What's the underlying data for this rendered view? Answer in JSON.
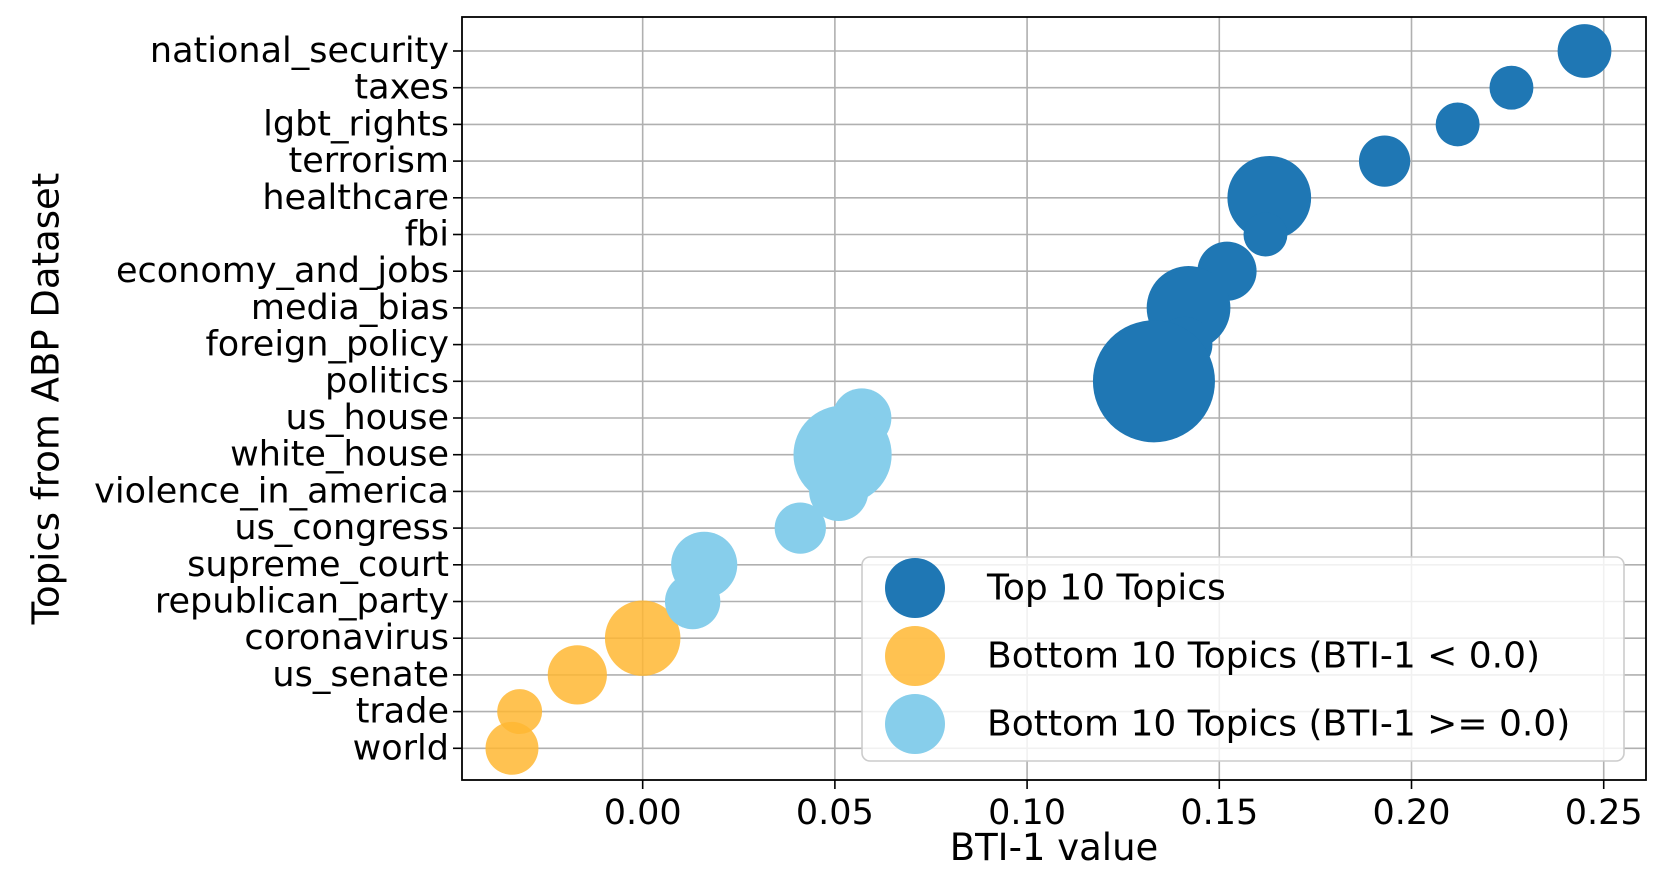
{
  "chart_data": {
    "type": "scatter",
    "xlabel": "BTI-1 value",
    "ylabel": "Topics from ABP Dataset",
    "xlim": [
      -0.047,
      0.261
    ],
    "xticks": [
      "0.00",
      "0.05",
      "0.10",
      "0.15",
      "0.20",
      "0.25"
    ],
    "xtick_values": [
      0.0,
      0.05,
      0.1,
      0.15,
      0.2,
      0.25
    ],
    "grid": true,
    "legend_position": "lower-right",
    "topics": [
      "national_security",
      "taxes",
      "lgbt_rights",
      "terrorism",
      "healthcare",
      "fbi",
      "economy_and_jobs",
      "media_bias",
      "foreign_policy",
      "politics",
      "us_house",
      "white_house",
      "violence_in_america",
      "us_congress",
      "supreme_court",
      "republican_party",
      "coronavirus",
      "us_senate",
      "trade",
      "world"
    ],
    "series": [
      {
        "name": "Top 10 Topics",
        "color": "#1f77b4",
        "points": [
          {
            "topic": "national_security",
            "x": 0.245,
            "size": 330
          },
          {
            "topic": "taxes",
            "x": 0.226,
            "size": 220
          },
          {
            "topic": "lgbt_rights",
            "x": 0.212,
            "size": 220
          },
          {
            "topic": "terrorism",
            "x": 0.193,
            "size": 300
          },
          {
            "topic": "healthcare",
            "x": 0.163,
            "size": 800
          },
          {
            "topic": "fbi",
            "x": 0.162,
            "size": 220
          },
          {
            "topic": "economy_and_jobs",
            "x": 0.152,
            "size": 400
          },
          {
            "topic": "media_bias",
            "x": 0.142,
            "size": 800
          },
          {
            "topic": "foreign_policy",
            "x": 0.141,
            "size": 350
          },
          {
            "topic": "politics",
            "x": 0.133,
            "size": 1700
          }
        ]
      },
      {
        "name": "Bottom 10 Topics (BTI-1 < 0.0)",
        "color": "#ffb732",
        "points": [
          {
            "topic": "coronavirus",
            "x": 0.0,
            "size": 650
          },
          {
            "topic": "us_senate",
            "x": -0.017,
            "size": 400
          },
          {
            "topic": "trade",
            "x": -0.032,
            "size": 230
          },
          {
            "topic": "world",
            "x": -0.034,
            "size": 320
          }
        ]
      },
      {
        "name": "Bottom 10 Topics (BTI-1 >= 0.0)",
        "color": "#87ceeb",
        "points": [
          {
            "topic": "us_house",
            "x": 0.057,
            "size": 400
          },
          {
            "topic": "white_house",
            "x": 0.052,
            "size": 1100
          },
          {
            "topic": "violence_in_america",
            "x": 0.051,
            "size": 400
          },
          {
            "topic": "us_congress",
            "x": 0.041,
            "size": 300
          },
          {
            "topic": "supreme_court",
            "x": 0.016,
            "size": 500
          },
          {
            "topic": "republican_party",
            "x": 0.013,
            "size": 350
          }
        ]
      }
    ]
  }
}
